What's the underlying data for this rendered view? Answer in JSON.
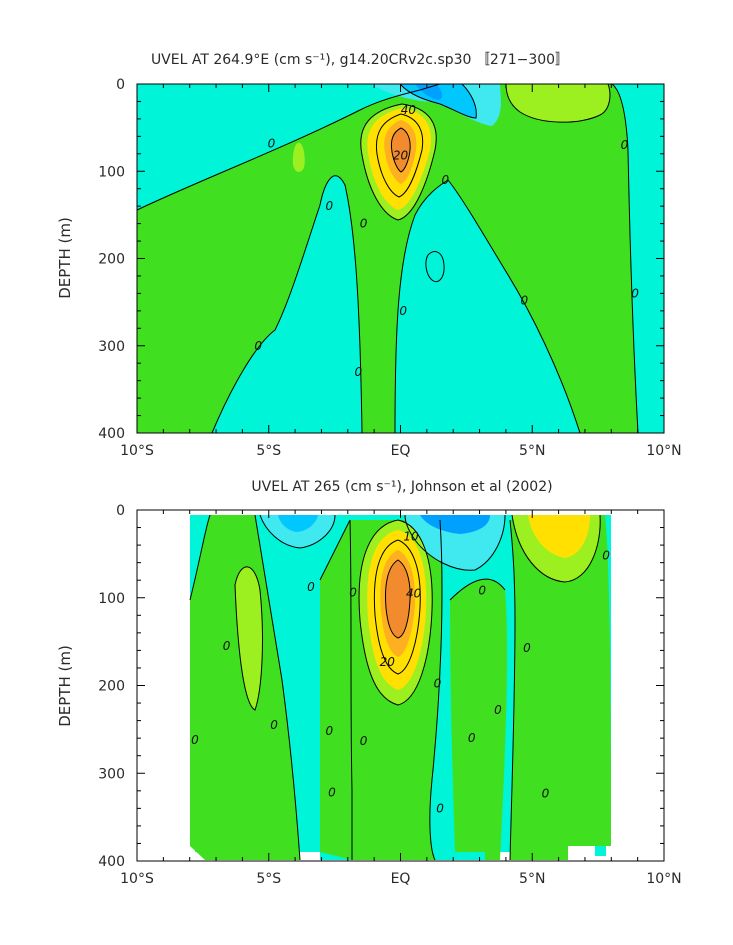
{
  "colors": {
    "c_neg_strong": "#00A0FF",
    "c_neg": "#00C8FF",
    "c_neg_weak": "#40E8F0",
    "c_zero_band": "#00F5D8",
    "c_pos_weak": "#40E020",
    "c_pos": "#9CF020",
    "c_pos_mid": "#FFE000",
    "c_pos_high": "#FFB020",
    "c_pos_core": "#F28A2E",
    "contour_line": "#000000"
  },
  "chart_data": [
    {
      "type": "heatmap",
      "title": "UVEL AT 264.9°E (cm s⁻¹), g14.20CRv2c.sp30 〚271−300〛",
      "xlabel": "",
      "ylabel": "DEPTH (m)",
      "xlim": [
        -10,
        10
      ],
      "ylim": [
        400,
        0
      ],
      "xticks": [
        {
          "value": -10,
          "label": "10°S"
        },
        {
          "value": -5,
          "label": "5°S"
        },
        {
          "value": 0,
          "label": "EQ"
        },
        {
          "value": 5,
          "label": "5°N"
        },
        {
          "value": 10,
          "label": "10°N"
        }
      ],
      "yticks": [
        {
          "value": 0,
          "label": "0"
        },
        {
          "value": 100,
          "label": "100"
        },
        {
          "value": 200,
          "label": "200"
        },
        {
          "value": 300,
          "label": "300"
        },
        {
          "value": 400,
          "label": "400"
        }
      ],
      "data_extent": {
        "lat": [
          -10,
          10
        ],
        "depth": [
          5,
          400
        ]
      },
      "core": {
        "lat": 0,
        "depth": 65,
        "max_speed": 50
      },
      "contour_labels": [
        {
          "lat": -4.9,
          "depth": 68,
          "text": "0"
        },
        {
          "lat": -5.4,
          "depth": 300,
          "text": "0"
        },
        {
          "lat": -2.7,
          "depth": 140,
          "text": "0"
        },
        {
          "lat": -1.4,
          "depth": 160,
          "text": "0"
        },
        {
          "lat": -1.6,
          "depth": 330,
          "text": "0"
        },
        {
          "lat": 0.1,
          "depth": 260,
          "text": "0"
        },
        {
          "lat": 0.3,
          "depth": 30,
          "text": "40"
        },
        {
          "lat": 0.0,
          "depth": 82,
          "text": "20"
        },
        {
          "lat": 1.7,
          "depth": 110,
          "text": "0"
        },
        {
          "lat": 4.7,
          "depth": 248,
          "text": "0"
        },
        {
          "lat": 8.5,
          "depth": 70,
          "text": "0"
        },
        {
          "lat": 8.9,
          "depth": 240,
          "text": "0"
        }
      ]
    },
    {
      "type": "heatmap",
      "title": "UVEL AT 265 (cm s⁻¹), Johnson et al (2002)",
      "xlabel": "",
      "ylabel": "DEPTH (m)",
      "xlim": [
        -10,
        10
      ],
      "ylim": [
        400,
        0
      ],
      "xticks": [
        {
          "value": -10,
          "label": "10°S"
        },
        {
          "value": -5,
          "label": "5°S"
        },
        {
          "value": 0,
          "label": "EQ"
        },
        {
          "value": 5,
          "label": "5°N"
        },
        {
          "value": 10,
          "label": "10°N"
        }
      ],
      "yticks": [
        {
          "value": 0,
          "label": "0"
        },
        {
          "value": 100,
          "label": "100"
        },
        {
          "value": 200,
          "label": "200"
        },
        {
          "value": 300,
          "label": "300"
        },
        {
          "value": 400,
          "label": "400"
        }
      ],
      "data_extent": {
        "lat": [
          -8,
          8
        ],
        "depth": [
          5,
          385
        ]
      },
      "core": {
        "lat": -0.1,
        "depth": 75,
        "max_speed": 60
      },
      "contour_labels": [
        {
          "lat": -7.8,
          "depth": 262,
          "text": "0"
        },
        {
          "lat": -6.6,
          "depth": 155,
          "text": "0"
        },
        {
          "lat": -4.8,
          "depth": 245,
          "text": "0"
        },
        {
          "lat": -3.4,
          "depth": 88,
          "text": "0"
        },
        {
          "lat": -2.7,
          "depth": 252,
          "text": "0"
        },
        {
          "lat": -2.6,
          "depth": 322,
          "text": "0"
        },
        {
          "lat": -1.8,
          "depth": 94,
          "text": "0"
        },
        {
          "lat": -1.4,
          "depth": 263,
          "text": "0"
        },
        {
          "lat": 0.4,
          "depth": 30,
          "text": "10"
        },
        {
          "lat": 0.5,
          "depth": 95,
          "text": "40"
        },
        {
          "lat": -0.5,
          "depth": 173,
          "text": "20"
        },
        {
          "lat": 1.4,
          "depth": 198,
          "text": "0"
        },
        {
          "lat": 1.5,
          "depth": 340,
          "text": "0"
        },
        {
          "lat": 3.1,
          "depth": 92,
          "text": "0"
        },
        {
          "lat": 2.7,
          "depth": 260,
          "text": "0"
        },
        {
          "lat": 3.7,
          "depth": 228,
          "text": "0"
        },
        {
          "lat": 4.8,
          "depth": 157,
          "text": "0"
        },
        {
          "lat": 5.5,
          "depth": 323,
          "text": "0"
        },
        {
          "lat": 7.8,
          "depth": 52,
          "text": "0"
        }
      ]
    }
  ]
}
